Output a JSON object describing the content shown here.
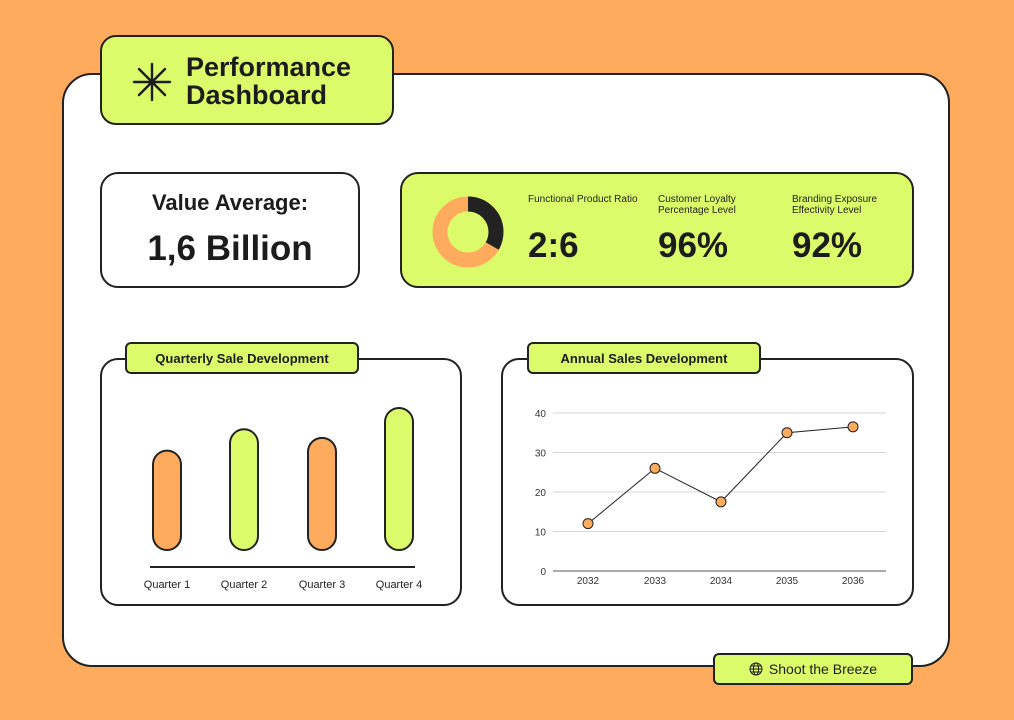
{
  "header": {
    "title": "Performance Dashboard",
    "icon": "asterisk-icon"
  },
  "value_card": {
    "label": "Value Average:",
    "value": "1,6 Billion"
  },
  "metrics": [
    {
      "label": "Functional Product Ratio",
      "value": "2:6"
    },
    {
      "label": "Customer Loyalty Percentage Level",
      "value": "96%"
    },
    {
      "label": "Branding Exposure Effectivity Level",
      "value": "92%"
    }
  ],
  "donut": {
    "filled_fraction": 0.333,
    "colors": {
      "filled": "#222222",
      "rest": "#FFAB5E"
    }
  },
  "quarterly": {
    "title": "Quarterly Sale Development",
    "chart_data": {
      "type": "bar",
      "categories": [
        "Quarter 1",
        "Quarter 2",
        "Quarter 3",
        "Quarter 4"
      ],
      "values": [
        0.7,
        0.85,
        0.79,
        1.0
      ],
      "colors": [
        "#FFAB5E",
        "#DCFB6A",
        "#FFAB5E",
        "#DCFB6A"
      ]
    }
  },
  "annual": {
    "title": "Annual Sales Development",
    "chart_data": {
      "type": "line",
      "x": [
        "2032",
        "2033",
        "2034",
        "2035",
        "2036"
      ],
      "values": [
        12,
        26,
        17.5,
        35,
        36.5
      ],
      "ylim": [
        0,
        40
      ],
      "yticks": [
        0,
        10,
        20,
        30,
        40
      ],
      "grid": true
    }
  },
  "footer": {
    "label": "Shoot the Breeze",
    "icon": "globe-icon"
  },
  "colors": {
    "background": "#FFAB5E",
    "accent": "#DCFB6A",
    "ink": "#222222"
  }
}
